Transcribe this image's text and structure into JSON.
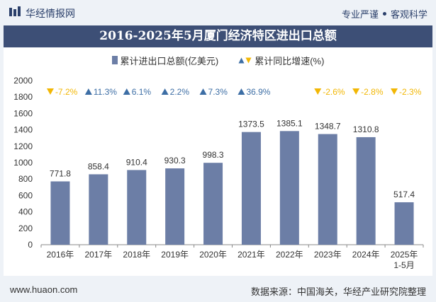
{
  "header": {
    "brand": "华经情报网",
    "slogan_left": "专业严谨",
    "slogan_right": "客观科学"
  },
  "footer": {
    "website": "www.huaon.com",
    "source": "数据来源：中国海关，华经产业研究院整理"
  },
  "colors": {
    "bar": "#6c7ea6",
    "up": "#3d6ea5",
    "down": "#f2b705",
    "title_bg": "#3d4f76"
  },
  "chart_data": {
    "type": "bar",
    "title": "2016-2025年5月厦门经济特区进出口总额",
    "categories": [
      "2016年",
      "2017年",
      "2018年",
      "2019年",
      "2020年",
      "2021年",
      "2022年",
      "2023年",
      "2024年",
      "2025年\n1-5月"
    ],
    "series": [
      {
        "name": "累计进出口总额(亿美元)",
        "values": [
          771.8,
          858.4,
          910.4,
          930.3,
          998.3,
          1373.5,
          1385.1,
          1348.7,
          1310.8,
          517.4
        ],
        "labels": [
          "771.8",
          "858.4",
          "910.4",
          "930.3",
          "998.3",
          "1373.5",
          "1385.1",
          "1348.7",
          "1310.8",
          "517.4"
        ]
      },
      {
        "name": "累计同比增速(%)",
        "values": [
          -7.2,
          11.3,
          6.1,
          2.2,
          7.3,
          36.9,
          null,
          -2.6,
          -2.8,
          -2.3
        ],
        "labels": [
          "-7.2%",
          "11.3%",
          "6.1%",
          "2.2%",
          "7.3%",
          "36.9%",
          "",
          "-2.6%",
          "-2.8%",
          "-2.3%"
        ]
      }
    ],
    "ylim": [
      0,
      2000
    ],
    "yticks": [
      0,
      200,
      400,
      600,
      800,
      1000,
      1200,
      1400,
      1600,
      1800,
      2000
    ],
    "legend_position": "top-center",
    "grid": false
  }
}
